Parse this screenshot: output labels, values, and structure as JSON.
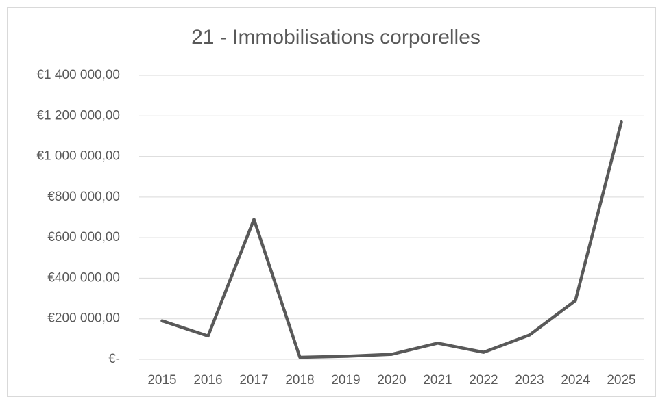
{
  "chart_data": {
    "type": "line",
    "title": "21 - Immobilisations corporelles",
    "categories": [
      "2015",
      "2016",
      "2017",
      "2018",
      "2019",
      "2020",
      "2021",
      "2022",
      "2023",
      "2024",
      "2025"
    ],
    "series": [
      {
        "color": "#595959",
        "values": [
          190000,
          115000,
          690000,
          10000,
          15000,
          25000,
          80000,
          35000,
          120000,
          290000,
          1170000
        ]
      }
    ],
    "ylim": [
      0,
      1400000
    ],
    "yticks": [
      {
        "value": 0,
        "label": "€-"
      },
      {
        "value": 200000,
        "label": "€200 000,00"
      },
      {
        "value": 400000,
        "label": "€400 000,00"
      },
      {
        "value": 600000,
        "label": "€600 000,00"
      },
      {
        "value": 800000,
        "label": "€800 000,00"
      },
      {
        "value": 1000000,
        "label": "€1 000 000,00"
      },
      {
        "value": 1200000,
        "label": "€1 200 000,00"
      },
      {
        "value": 1400000,
        "label": "€1 400 000,00"
      }
    ],
    "grid": true
  }
}
